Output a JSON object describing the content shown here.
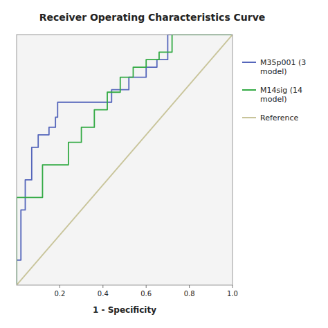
{
  "chart_data": {
    "type": "line",
    "title": "Receiver Operating Characteristics Curve",
    "x_label": "1 - Specificity",
    "xlim": [
      0.0,
      1.0
    ],
    "ylim": [
      0.0,
      1.0
    ],
    "xticks": [
      0.2,
      0.4,
      0.6,
      0.8,
      {
        "value": 1.0,
        "label": "1.0"
      }
    ],
    "yticks": [],
    "tick_labels": "x",
    "grid": false,
    "legend": "right",
    "series": [
      {
        "name": "M35p001 (3\nmodel)",
        "color": "#5566bb",
        "x": [
          0.0,
          0.0,
          0.02,
          0.02,
          0.04,
          0.04,
          0.07,
          0.07,
          0.1,
          0.1,
          0.15,
          0.15,
          0.18,
          0.18,
          0.19,
          0.19,
          0.44,
          0.44,
          0.52,
          0.52,
          0.6,
          0.6,
          0.65,
          0.65,
          0.7,
          0.7,
          1.0
        ],
        "values": [
          0.0,
          0.1,
          0.1,
          0.3,
          0.3,
          0.42,
          0.42,
          0.55,
          0.55,
          0.6,
          0.6,
          0.63,
          0.63,
          0.67,
          0.67,
          0.73,
          0.73,
          0.78,
          0.78,
          0.83,
          0.83,
          0.87,
          0.87,
          0.9,
          0.9,
          1.0,
          1.0
        ]
      },
      {
        "name": "M14sig (14\nmodel)",
        "color": "#33aa44",
        "x": [
          0.0,
          0.0,
          0.12,
          0.12,
          0.24,
          0.24,
          0.3,
          0.3,
          0.36,
          0.36,
          0.42,
          0.42,
          0.48,
          0.48,
          0.54,
          0.54,
          0.6,
          0.6,
          0.66,
          0.66,
          0.72,
          0.72,
          1.0
        ],
        "values": [
          0.0,
          0.35,
          0.35,
          0.48,
          0.48,
          0.57,
          0.57,
          0.63,
          0.63,
          0.7,
          0.7,
          0.77,
          0.77,
          0.83,
          0.83,
          0.87,
          0.87,
          0.9,
          0.9,
          0.93,
          0.93,
          1.0,
          1.0
        ]
      },
      {
        "name": "Reference",
        "color": "#c8c49a",
        "x": [
          0,
          1
        ],
        "values": [
          0,
          1
        ]
      }
    ]
  }
}
